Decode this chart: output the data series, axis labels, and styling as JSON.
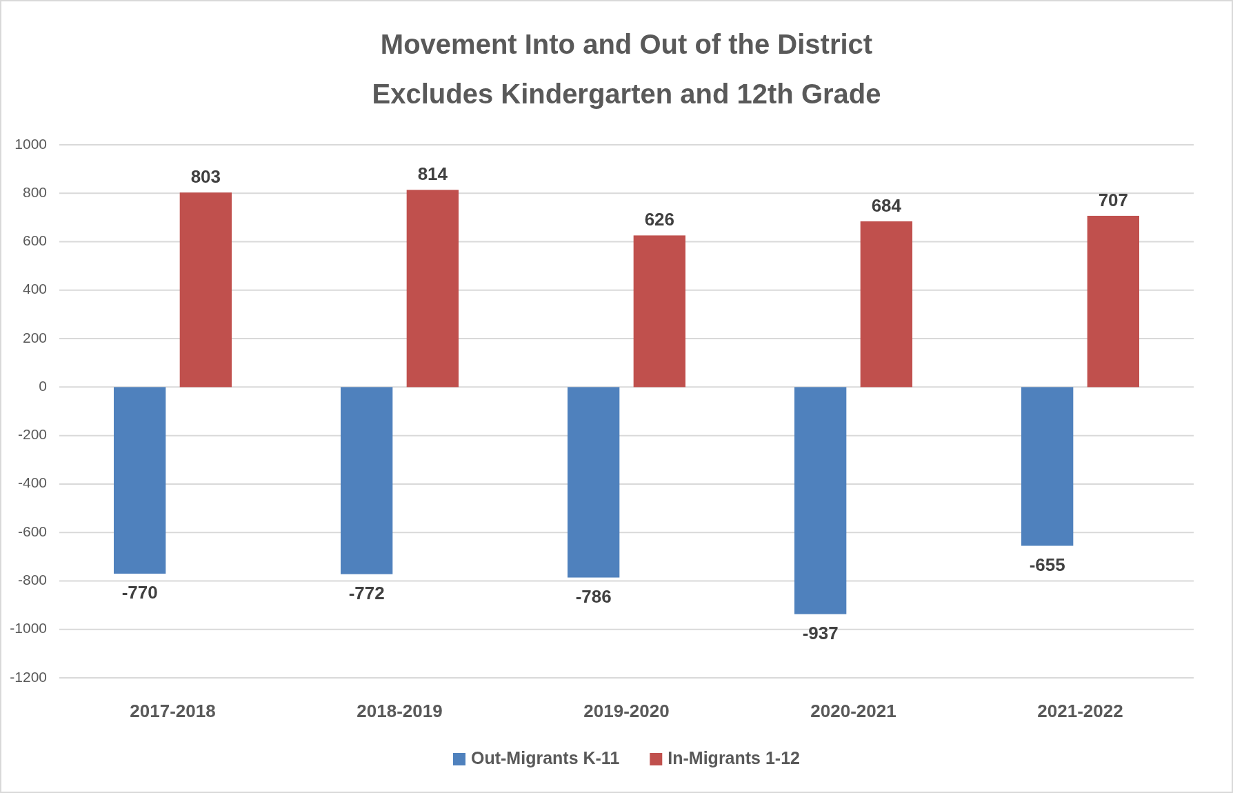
{
  "chart_data": {
    "type": "bar",
    "title": "Movement Into and Out of the District",
    "subtitle": "Excludes Kindergarten and 12th Grade",
    "categories": [
      "2017-2018",
      "2018-2019",
      "2019-2020",
      "2020-2021",
      "2021-2022"
    ],
    "series": [
      {
        "name": "Out-Migrants K-11",
        "color": "#4f81bd",
        "values": [
          -770,
          -772,
          -786,
          -937,
          -655
        ]
      },
      {
        "name": "In-Migrants 1-12",
        "color": "#c0504d",
        "values": [
          803,
          814,
          626,
          684,
          707
        ]
      }
    ],
    "ylim": [
      -1200,
      1000
    ],
    "yticks": [
      -1200,
      -1000,
      -800,
      -600,
      -400,
      -200,
      0,
      200,
      400,
      600,
      800,
      1000
    ],
    "grid": "y",
    "legend": "bottom",
    "data_labels": true
  }
}
